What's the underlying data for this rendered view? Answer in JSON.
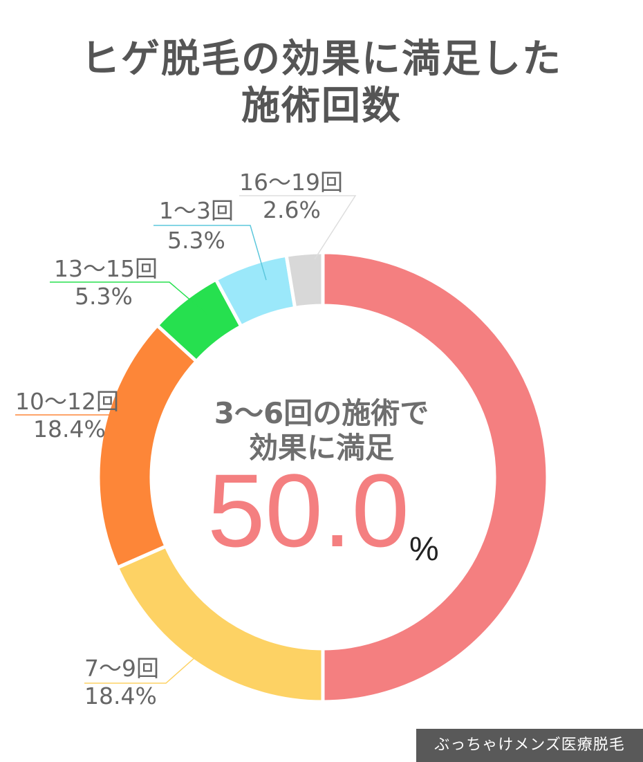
{
  "title_lines": [
    "ヒゲ脱毛の効果に満足した",
    "施術回数"
  ],
  "center_lines": [
    "3〜6回の施術で",
    "効果に満足"
  ],
  "highlight_value": "50.0",
  "highlight_unit": "%",
  "credit": "ぶっちゃけメンズ医療脱毛",
  "chart_data": {
    "type": "pie",
    "series": [
      {
        "category": "3〜6回",
        "value": 50.0,
        "color": "#f47f80"
      },
      {
        "category": "7〜9回",
        "value": 18.4,
        "color": "#fdd264"
      },
      {
        "category": "10〜12回",
        "value": 18.4,
        "color": "#fd8638"
      },
      {
        "category": "13〜15回",
        "value": 5.3,
        "color": "#26e04f"
      },
      {
        "category": "1〜3回",
        "value": 5.3,
        "color": "#9be8fa"
      },
      {
        "category": "16〜19回",
        "value": 2.6,
        "color": "#d8d8d8"
      }
    ],
    "labels": [
      {
        "name": "7〜9回",
        "pct": "18.4%",
        "line_color": "#fdd264"
      },
      {
        "name": "10〜12回",
        "pct": "18.4%",
        "line_color": "#fd8638"
      },
      {
        "name": "13〜15回",
        "pct": "5.3%",
        "line_color": "#26e04f"
      },
      {
        "name": "1〜3回",
        "pct": "5.3%",
        "line_color": "#5cc7dc"
      },
      {
        "name": "16〜19回",
        "pct": "2.6%",
        "line_color": "#dddddd"
      }
    ]
  }
}
